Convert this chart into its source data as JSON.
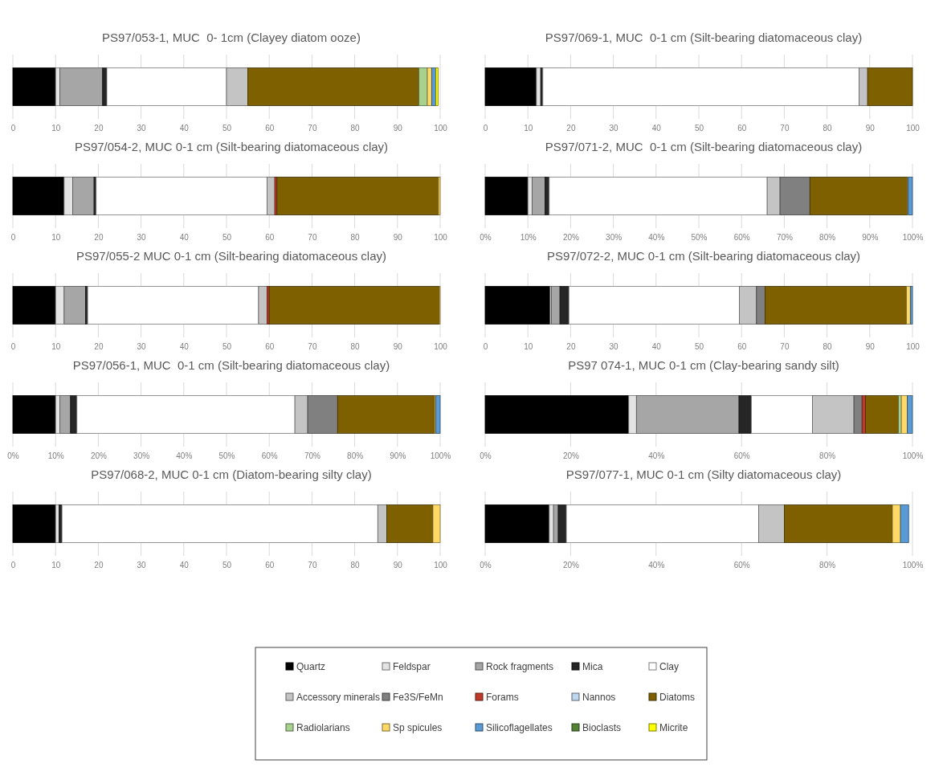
{
  "chart_data": [
    {
      "type": "bar",
      "orientation": "horizontal",
      "stacked": true,
      "title": "PS97/053-1, MUC  0- 1cm (Clayey diatom ooze)",
      "categories": [
        null
      ],
      "xlim": [
        0,
        100
      ],
      "xticks": [
        0,
        10,
        20,
        30,
        40,
        50,
        60,
        70,
        80,
        90,
        100
      ],
      "grid": "x",
      "tick_labels": "x",
      "legend": "bottom",
      "series": [
        {
          "name": "Quartz",
          "color": "#000000",
          "values": [
            10
          ]
        },
        {
          "name": "Feldspar",
          "color": "#e4e4e4",
          "values": [
            1
          ]
        },
        {
          "name": "Rock fragments",
          "color": "#a6a6a6",
          "values": [
            10
          ]
        },
        {
          "name": "Mica",
          "color": "#262626",
          "values": [
            1
          ]
        },
        {
          "name": "Clay",
          "color": "#ffffff",
          "values": [
            28
          ]
        },
        {
          "name": "Accessory minerals",
          "color": "#c4c4c4",
          "values": [
            5
          ]
        },
        {
          "name": "Fe3S/FeMn",
          "color": "#808080",
          "values": [
            0
          ]
        },
        {
          "name": "Forams",
          "color": "#c0392b",
          "values": [
            0
          ]
        },
        {
          "name": "Nannos",
          "color": "#bdd7ee",
          "values": [
            0
          ]
        },
        {
          "name": "Diatoms",
          "color": "#7f6000",
          "values": [
            40
          ]
        },
        {
          "name": "Radiolarians",
          "color": "#a9d18e",
          "values": [
            2
          ]
        },
        {
          "name": "Sp spicules",
          "color": "#ffd966",
          "values": [
            1
          ]
        },
        {
          "name": "Silicoflagellates",
          "color": "#5b9bd5",
          "values": [
            1
          ]
        },
        {
          "name": "Bioclasts",
          "color": "#548235",
          "values": [
            0
          ]
        },
        {
          "name": "Micrite",
          "color": "#ffff00",
          "values": [
            0.5
          ]
        }
      ]
    },
    {
      "type": "bar",
      "orientation": "horizontal",
      "stacked": true,
      "title": "PS97/069-1, MUC  0-1 cm (Silt-bearing diatomaceous clay)",
      "categories": [
        null
      ],
      "xlim": [
        0,
        100
      ],
      "xticks": [
        0,
        10,
        20,
        30,
        40,
        50,
        60,
        70,
        80,
        90,
        100
      ],
      "grid": "x",
      "tick_labels": "x",
      "series": [
        {
          "color": "#000000",
          "values": [
            12
          ]
        },
        {
          "color": "#e4e4e4",
          "values": [
            1
          ]
        },
        {
          "color": "#a6a6a6",
          "values": [
            0
          ]
        },
        {
          "color": "#262626",
          "values": [
            0.5
          ]
        },
        {
          "color": "#ffffff",
          "values": [
            74
          ]
        },
        {
          "color": "#c4c4c4",
          "values": [
            2
          ]
        },
        {
          "color": "#f0f0f0",
          "values": [
            0
          ]
        },
        {
          "color": "#c0392b",
          "values": [
            0
          ]
        },
        {
          "color": "#bdd7ee",
          "values": [
            0
          ]
        },
        {
          "color": "#7f6000",
          "values": [
            10.5
          ]
        },
        {
          "color": "#a9d18e",
          "values": [
            0
          ]
        },
        {
          "color": "#ffd966",
          "values": [
            0
          ]
        },
        {
          "color": "#5b9bd5",
          "values": [
            0
          ]
        },
        {
          "color": "#548235",
          "values": [
            0
          ]
        },
        {
          "color": "#ffff00",
          "values": [
            0
          ]
        }
      ]
    },
    {
      "type": "bar",
      "orientation": "horizontal",
      "stacked": true,
      "title": "PS97/054-2, MUC 0-1 cm (Silt-bearing diatomaceous clay)",
      "categories": [
        null
      ],
      "xlim": [
        0,
        100
      ],
      "xticks": [
        0,
        10,
        20,
        30,
        40,
        50,
        60,
        70,
        80,
        90,
        100
      ],
      "grid": "x",
      "tick_labels": "x",
      "series": [
        {
          "color": "#000000",
          "values": [
            12
          ]
        },
        {
          "color": "#e4e4e4",
          "values": [
            2
          ]
        },
        {
          "color": "#a6a6a6",
          "values": [
            5
          ]
        },
        {
          "color": "#262626",
          "values": [
            0.5
          ]
        },
        {
          "color": "#ffffff",
          "values": [
            40
          ]
        },
        {
          "color": "#c4c4c4",
          "values": [
            1.8
          ]
        },
        {
          "color": "#f0f0f0",
          "values": [
            0
          ]
        },
        {
          "color": "#c0392b",
          "values": [
            0.5
          ]
        },
        {
          "color": "#bdd7ee",
          "values": [
            0
          ]
        },
        {
          "color": "#7f6000",
          "values": [
            37.8
          ]
        },
        {
          "color": "#a9d18e",
          "values": [
            0
          ]
        },
        {
          "color": "#ffd966",
          "values": [
            0.4
          ]
        },
        {
          "color": "#5b9bd5",
          "values": [
            0
          ]
        },
        {
          "color": "#548235",
          "values": [
            0
          ]
        },
        {
          "color": "#ffff00",
          "values": [
            0
          ]
        }
      ]
    },
    {
      "type": "bar",
      "orientation": "horizontal",
      "stacked": true,
      "title": "PS97/071-2, MUC  0-1 cm (Silt-bearing diatomaceous clay)",
      "categories": [
        null
      ],
      "xlim": [
        0,
        100
      ],
      "xticks": [
        {
          "value": 0,
          "label": "0%"
        },
        {
          "value": 10,
          "label": "10%"
        },
        {
          "value": 20,
          "label": "20%"
        },
        {
          "value": 30,
          "label": "30%"
        },
        {
          "value": 40,
          "label": "40%"
        },
        {
          "value": 50,
          "label": "50%"
        },
        {
          "value": 60,
          "label": "60%"
        },
        {
          "value": 70,
          "label": "70%"
        },
        {
          "value": 80,
          "label": "80%"
        },
        {
          "value": 90,
          "label": "90%"
        },
        {
          "value": 100,
          "label": "100%"
        }
      ],
      "grid": "x",
      "tick_labels": "x",
      "series": [
        {
          "color": "#000000",
          "values": [
            10
          ]
        },
        {
          "color": "#e4e4e4",
          "values": [
            1
          ]
        },
        {
          "color": "#a6a6a6",
          "values": [
            3
          ]
        },
        {
          "color": "#262626",
          "values": [
            1
          ]
        },
        {
          "color": "#ffffff",
          "values": [
            51
          ]
        },
        {
          "color": "#c4c4c4",
          "values": [
            3
          ]
        },
        {
          "color": "#808080",
          "values": [
            7
          ]
        },
        {
          "color": "#c0392b",
          "values": [
            0
          ]
        },
        {
          "color": "#bdd7ee",
          "values": [
            0
          ]
        },
        {
          "color": "#7f6000",
          "values": [
            22.8
          ]
        },
        {
          "color": "#a9d18e",
          "values": [
            0
          ]
        },
        {
          "color": "#ffd966",
          "values": [
            0.2
          ]
        },
        {
          "color": "#5b9bd5",
          "values": [
            1
          ]
        },
        {
          "color": "#548235",
          "values": [
            0
          ]
        },
        {
          "color": "#ffff00",
          "values": [
            0
          ]
        }
      ]
    },
    {
      "type": "bar",
      "orientation": "horizontal",
      "stacked": true,
      "title": "PS97/055-2 MUC 0-1 cm (Silt-bearing diatomaceous clay)",
      "categories": [
        null
      ],
      "xlim": [
        0,
        100
      ],
      "xticks": [
        0,
        10,
        20,
        30,
        40,
        50,
        60,
        70,
        80,
        90,
        100
      ],
      "grid": "x",
      "tick_labels": "x",
      "series": [
        {
          "color": "#000000",
          "values": [
            10
          ]
        },
        {
          "color": "#e4e4e4",
          "values": [
            2
          ]
        },
        {
          "color": "#a6a6a6",
          "values": [
            5
          ]
        },
        {
          "color": "#262626",
          "values": [
            0.5
          ]
        },
        {
          "color": "#ffffff",
          "values": [
            40
          ]
        },
        {
          "color": "#c4c4c4",
          "values": [
            2
          ]
        },
        {
          "color": "#f0f0f0",
          "values": [
            0
          ]
        },
        {
          "color": "#c0392b",
          "values": [
            0.5
          ]
        },
        {
          "color": "#bdd7ee",
          "values": [
            0
          ]
        },
        {
          "color": "#7f6000",
          "values": [
            39.8
          ]
        },
        {
          "color": "#a9d18e",
          "values": [
            0
          ]
        },
        {
          "color": "#ffd966",
          "values": [
            0.2
          ]
        },
        {
          "color": "#5b9bd5",
          "values": [
            0
          ]
        },
        {
          "color": "#548235",
          "values": [
            0
          ]
        },
        {
          "color": "#ffff00",
          "values": [
            0
          ]
        }
      ]
    },
    {
      "type": "bar",
      "orientation": "horizontal",
      "stacked": true,
      "title": "PS97/072-2, MUC 0-1 cm (Silt-bearing diatomaceous clay)",
      "categories": [
        null
      ],
      "xlim": [
        0,
        100
      ],
      "xticks": [
        0,
        10,
        20,
        30,
        40,
        50,
        60,
        70,
        80,
        90,
        100
      ],
      "grid": "x",
      "tick_labels": "x",
      "series": [
        {
          "color": "#000000",
          "values": [
            15.2
          ]
        },
        {
          "color": "#e4e4e4",
          "values": [
            0.3
          ]
        },
        {
          "color": "#a6a6a6",
          "values": [
            2
          ]
        },
        {
          "color": "#262626",
          "values": [
            2.1
          ]
        },
        {
          "color": "#ffffff",
          "values": [
            39.9
          ]
        },
        {
          "color": "#c4c4c4",
          "values": [
            4
          ]
        },
        {
          "color": "#808080",
          "values": [
            2
          ]
        },
        {
          "color": "#c0392b",
          "values": [
            0
          ]
        },
        {
          "color": "#bdd7ee",
          "values": [
            0
          ]
        },
        {
          "color": "#7f6000",
          "values": [
            33.1
          ]
        },
        {
          "color": "#a9d18e",
          "values": [
            0
          ]
        },
        {
          "color": "#ffd966",
          "values": [
            0.9
          ]
        },
        {
          "color": "#5b9bd5",
          "values": [
            0.5
          ]
        },
        {
          "color": "#548235",
          "values": [
            0
          ]
        },
        {
          "color": "#ffff00",
          "values": [
            0
          ]
        }
      ]
    },
    {
      "type": "bar",
      "orientation": "horizontal",
      "stacked": true,
      "title": "PS97/056-1, MUC  0-1 cm (Silt-bearing diatomaceous clay)",
      "categories": [
        null
      ],
      "xlim": [
        0,
        100
      ],
      "xticks": [
        {
          "value": 0,
          "label": "0%"
        },
        {
          "value": 10,
          "label": "10%"
        },
        {
          "value": 20,
          "label": "20%"
        },
        {
          "value": 30,
          "label": "30%"
        },
        {
          "value": 40,
          "label": "40%"
        },
        {
          "value": 50,
          "label": "50%"
        },
        {
          "value": 60,
          "label": "60%"
        },
        {
          "value": 70,
          "label": "70%"
        },
        {
          "value": 80,
          "label": "80%"
        },
        {
          "value": 90,
          "label": "90%"
        },
        {
          "value": 100,
          "label": "100%"
        }
      ],
      "grid": "x",
      "tick_labels": "x",
      "series": [
        {
          "color": "#000000",
          "values": [
            10
          ]
        },
        {
          "color": "#e4e4e4",
          "values": [
            1
          ]
        },
        {
          "color": "#a6a6a6",
          "values": [
            2.5
          ]
        },
        {
          "color": "#262626",
          "values": [
            1.5
          ]
        },
        {
          "color": "#ffffff",
          "values": [
            51
          ]
        },
        {
          "color": "#c4c4c4",
          "values": [
            3
          ]
        },
        {
          "color": "#808080",
          "values": [
            7
          ]
        },
        {
          "color": "#c0392b",
          "values": [
            0
          ]
        },
        {
          "color": "#bdd7ee",
          "values": [
            0
          ]
        },
        {
          "color": "#7f6000",
          "values": [
            22.7
          ]
        },
        {
          "color": "#a9d18e",
          "values": [
            0
          ]
        },
        {
          "color": "#ffd966",
          "values": [
            0.3
          ]
        },
        {
          "color": "#5b9bd5",
          "values": [
            1
          ]
        },
        {
          "color": "#548235",
          "values": [
            0
          ]
        },
        {
          "color": "#ffff00",
          "values": [
            0
          ]
        }
      ]
    },
    {
      "type": "bar",
      "orientation": "horizontal",
      "stacked": true,
      "title": "PS97 074-1, MUC 0-1 cm (Clay-bearing sandy silt)",
      "categories": [
        null
      ],
      "xlim": [
        0,
        100
      ],
      "xticks": [
        {
          "value": 0,
          "label": "0%"
        },
        {
          "value": 20,
          "label": "20%"
        },
        {
          "value": 40,
          "label": "40%"
        },
        {
          "value": 60,
          "label": "60%"
        },
        {
          "value": 80,
          "label": "80%"
        },
        {
          "value": 100,
          "label": "100%"
        }
      ],
      "grid": "x",
      "tick_labels": "x",
      "series": [
        {
          "color": "#000000",
          "values": [
            33.6
          ]
        },
        {
          "color": "#e4e4e4",
          "values": [
            1.8
          ]
        },
        {
          "color": "#a6a6a6",
          "values": [
            24
          ]
        },
        {
          "color": "#262626",
          "values": [
            2.9
          ]
        },
        {
          "color": "#ffffff",
          "values": [
            14.3
          ]
        },
        {
          "color": "#c4c4c4",
          "values": [
            9.7
          ]
        },
        {
          "color": "#808080",
          "values": [
            1.9
          ]
        },
        {
          "color": "#c0392b",
          "values": [
            0.8
          ]
        },
        {
          "color": "#bdd7ee",
          "values": [
            0
          ]
        },
        {
          "color": "#7f6000",
          "values": [
            7.7
          ]
        },
        {
          "color": "#a9d18e",
          "values": [
            0.7
          ]
        },
        {
          "color": "#ffd966",
          "values": [
            1.4
          ]
        },
        {
          "color": "#5b9bd5",
          "values": [
            1.2
          ]
        },
        {
          "color": "#548235",
          "values": [
            0
          ]
        },
        {
          "color": "#ffff00",
          "values": [
            0
          ]
        }
      ]
    },
    {
      "type": "bar",
      "orientation": "horizontal",
      "stacked": true,
      "title": "PS97/068-2, MUC 0-1 cm (Diatom-bearing silty clay)",
      "categories": [
        null
      ],
      "xlim": [
        0,
        100
      ],
      "xticks": [
        0,
        10,
        20,
        30,
        40,
        50,
        60,
        70,
        80,
        90,
        100
      ],
      "grid": "x",
      "tick_labels": "x",
      "series": [
        {
          "color": "#000000",
          "values": [
            10
          ]
        },
        {
          "color": "#e4e4e4",
          "values": [
            0.8
          ]
        },
        {
          "color": "#a6a6a6",
          "values": [
            0
          ]
        },
        {
          "color": "#262626",
          "values": [
            0.7
          ]
        },
        {
          "color": "#ffffff",
          "values": [
            73.9
          ]
        },
        {
          "color": "#c4c4c4",
          "values": [
            2.1
          ]
        },
        {
          "color": "#f0f0f0",
          "values": [
            0
          ]
        },
        {
          "color": "#c0392b",
          "values": [
            0
          ]
        },
        {
          "color": "#bdd7ee",
          "values": [
            0
          ]
        },
        {
          "color": "#7f6000",
          "values": [
            10.8
          ]
        },
        {
          "color": "#a9d18e",
          "values": [
            0
          ]
        },
        {
          "color": "#ffd966",
          "values": [
            1.7
          ]
        },
        {
          "color": "#5b9bd5",
          "values": [
            0
          ]
        },
        {
          "color": "#548235",
          "values": [
            0
          ]
        },
        {
          "color": "#ffff00",
          "values": [
            0
          ]
        }
      ]
    },
    {
      "type": "bar",
      "orientation": "horizontal",
      "stacked": true,
      "title": "PS97/077-1, MUC 0-1 cm (Silty diatomaceous clay)",
      "categories": [
        null
      ],
      "xlim": [
        0,
        100
      ],
      "xticks": [
        {
          "value": 0,
          "label": "0%"
        },
        {
          "value": 20,
          "label": "20%"
        },
        {
          "value": 40,
          "label": "40%"
        },
        {
          "value": 60,
          "label": "60%"
        },
        {
          "value": 80,
          "label": "80%"
        },
        {
          "value": 100,
          "label": "100%"
        }
      ],
      "grid": "x",
      "tick_labels": "x",
      "series": [
        {
          "color": "#000000",
          "values": [
            15
          ]
        },
        {
          "color": "#e4e4e4",
          "values": [
            1
          ]
        },
        {
          "color": "#a6a6a6",
          "values": [
            1.1
          ]
        },
        {
          "color": "#262626",
          "values": [
            1.9
          ]
        },
        {
          "color": "#ffffff",
          "values": [
            45
          ]
        },
        {
          "color": "#c4c4c4",
          "values": [
            6
          ]
        },
        {
          "color": "#f0f0f0",
          "values": [
            0
          ]
        },
        {
          "color": "#c0392b",
          "values": [
            0
          ]
        },
        {
          "color": "#bdd7ee",
          "values": [
            0
          ]
        },
        {
          "color": "#7f6000",
          "values": [
            25.3
          ]
        },
        {
          "color": "#a9d18e",
          "values": [
            0
          ]
        },
        {
          "color": "#ffd966",
          "values": [
            1.9
          ]
        },
        {
          "color": "#5b9bd5",
          "values": [
            1.9
          ]
        },
        {
          "color": "#548235",
          "values": [
            0
          ]
        },
        {
          "color": "#ffff00",
          "values": [
            0
          ]
        }
      ]
    }
  ]
}
